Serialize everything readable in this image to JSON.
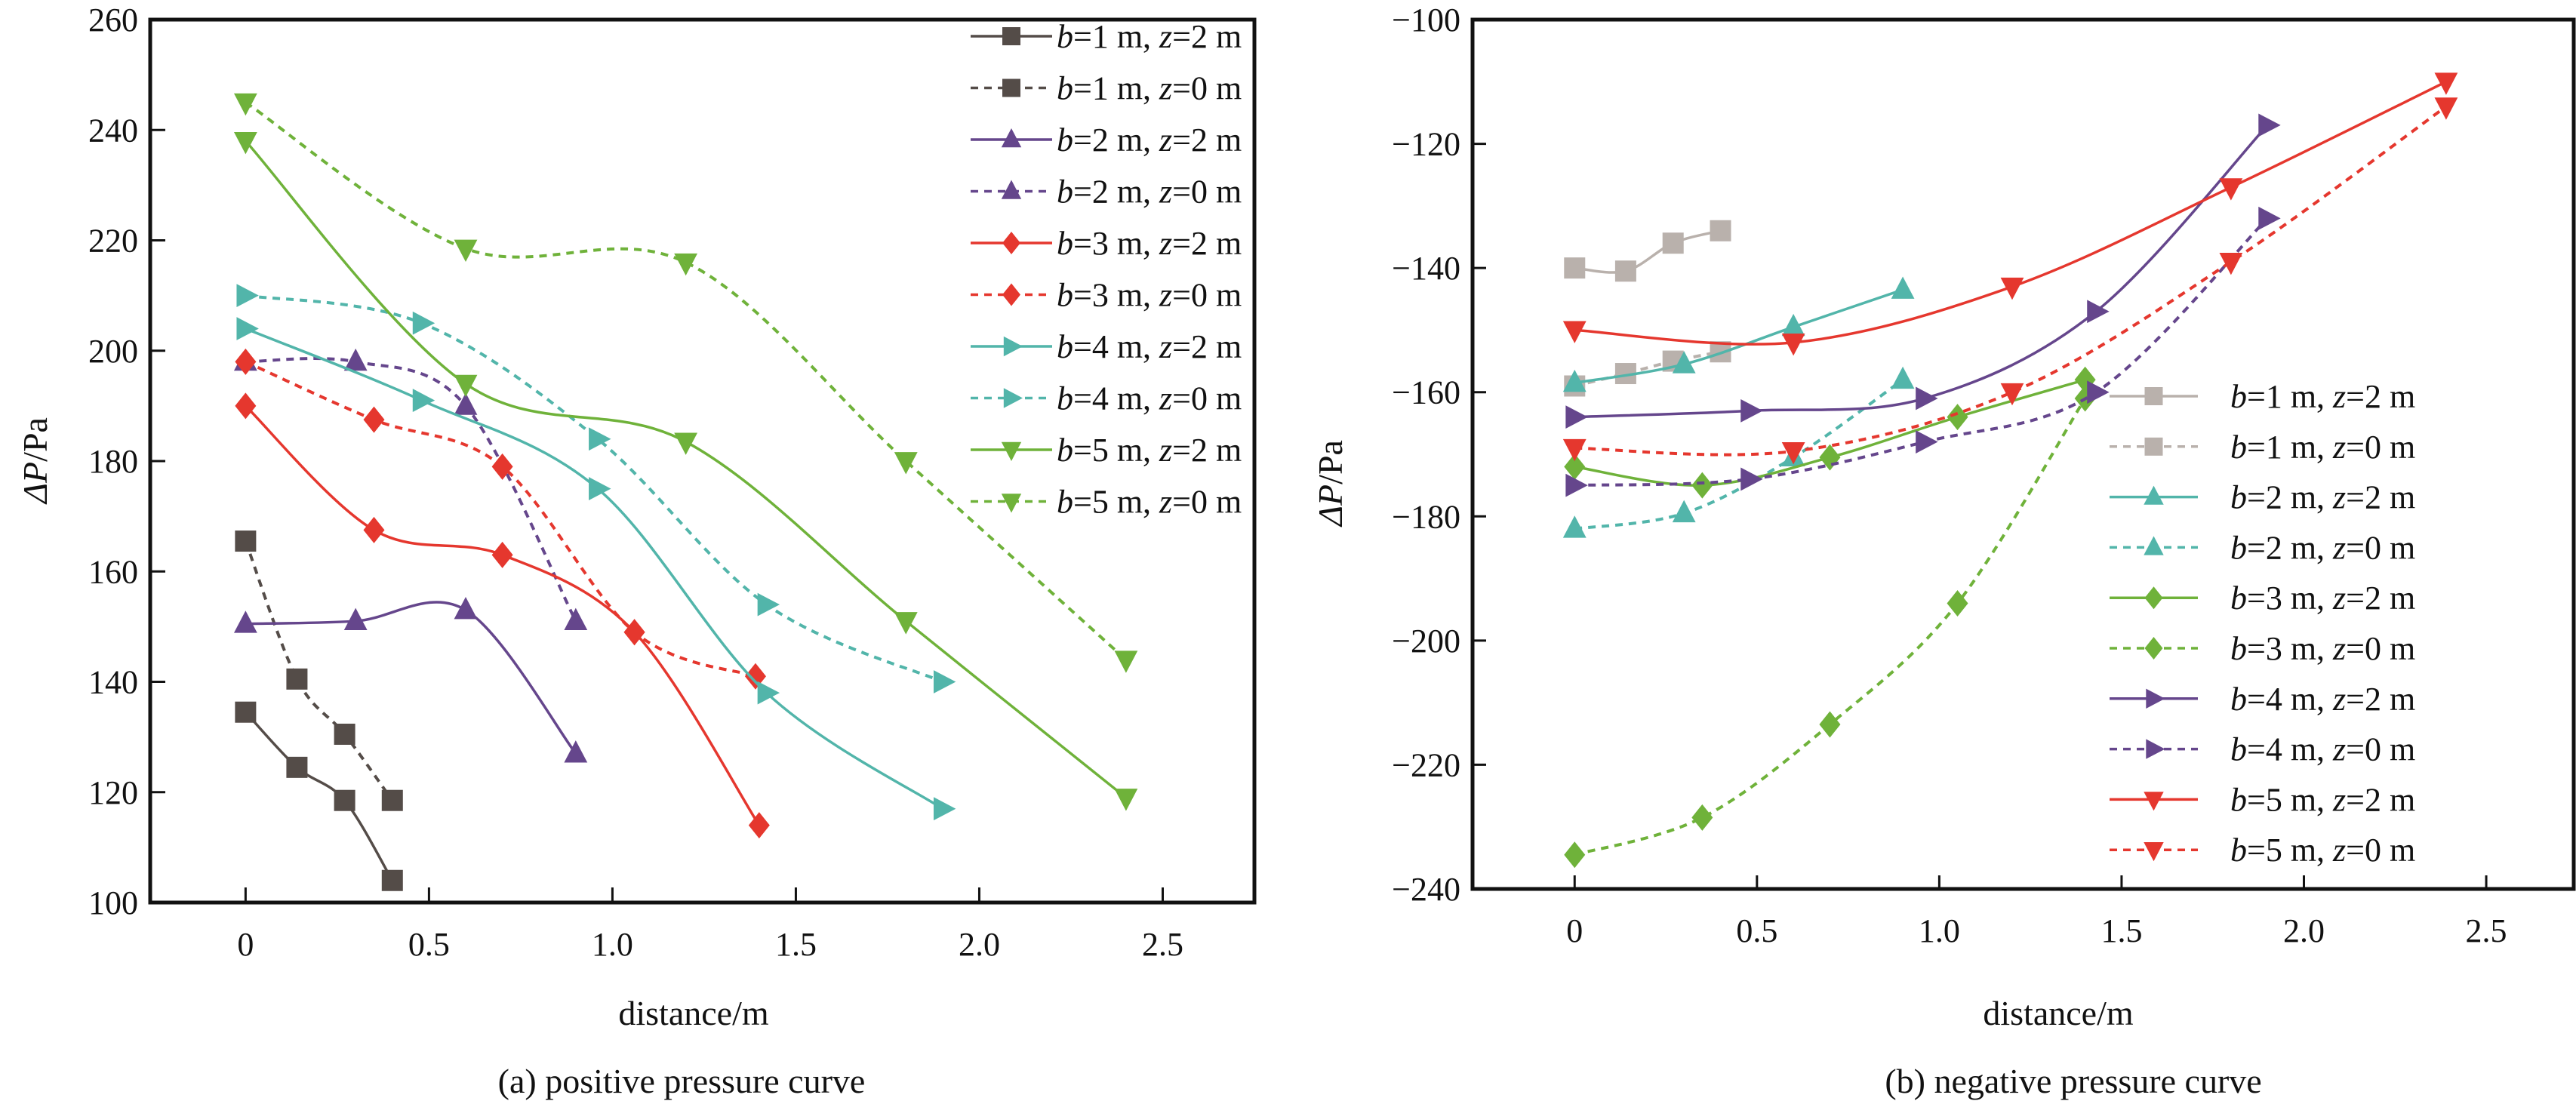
{
  "figure": {
    "panels": [
      "(a) positive pressure curve",
      "(b) negative pressure curve"
    ]
  },
  "chart_data": [
    {
      "id": "positive",
      "type": "line",
      "title": "(a) positive pressure curve",
      "xlabel": "distance/m",
      "ylabel_symbol": "ΔP",
      "ylabel_unit": "/Pa",
      "xlim": [
        -0.26,
        2.75
      ],
      "ylim": [
        100,
        260
      ],
      "xticks": [
        0,
        0.5,
        1.0,
        1.5,
        2.0,
        2.5
      ],
      "xtick_labels": [
        "0",
        "0.5",
        "1.0",
        "1.5",
        "2.0",
        "2.5"
      ],
      "yticks": [
        100,
        120,
        140,
        160,
        180,
        200,
        220,
        240,
        260
      ],
      "ytick_labels": [
        "100",
        "120",
        "140",
        "160",
        "180",
        "200",
        "220",
        "240",
        "260"
      ],
      "grid": false,
      "legend_placement": "top-right",
      "legend_boxed": true,
      "series": [
        {
          "name": "b=1 m, z=2 m",
          "b": "1",
          "z": "2",
          "color": "#544c48",
          "dash": "solid",
          "marker": "square",
          "x": [
            0,
            0.14,
            0.27,
            0.4
          ],
          "y": [
            134.5,
            124.5,
            118.5,
            104
          ]
        },
        {
          "name": "b=1 m, z=0 m",
          "b": "1",
          "z": "0",
          "color": "#544c48",
          "dash": "dashed",
          "marker": "square",
          "x": [
            0,
            0.14,
            0.27,
            0.4
          ],
          "y": [
            165.5,
            140.5,
            130.5,
            118.5
          ]
        },
        {
          "name": "b=2 m, z=2 m",
          "b": "2",
          "z": "2",
          "color": "#65468c",
          "dash": "solid",
          "marker": "triangle-up",
          "x": [
            0,
            0.3,
            0.6,
            0.9
          ],
          "y": [
            150.5,
            151,
            153,
            127
          ]
        },
        {
          "name": "b=2 m, z=0 m",
          "b": "2",
          "z": "0",
          "color": "#65468c",
          "dash": "dashed",
          "marker": "triangle-up",
          "x": [
            0,
            0.3,
            0.6,
            0.9
          ],
          "y": [
            198,
            198,
            190,
            151
          ]
        },
        {
          "name": "b=3 m, z=2 m",
          "b": "3",
          "z": "2",
          "color": "#e5372e",
          "dash": "solid",
          "marker": "diamond",
          "x": [
            0,
            0.35,
            0.7,
            1.06,
            1.4
          ],
          "y": [
            190,
            167.5,
            163,
            149,
            114
          ]
        },
        {
          "name": "b=3 m, z=0 m",
          "b": "3",
          "z": "0",
          "color": "#e5372e",
          "dash": "dashed",
          "marker": "diamond",
          "x": [
            0,
            0.35,
            0.7,
            1.06,
            1.39
          ],
          "y": [
            198,
            187.5,
            179,
            149,
            141
          ]
        },
        {
          "name": "b=4 m, z=2 m",
          "b": "4",
          "z": "2",
          "color": "#52b5aa",
          "dash": "solid",
          "marker": "triangle-right",
          "x": [
            0,
            0.48,
            0.96,
            1.42,
            1.9
          ],
          "y": [
            204,
            191,
            175,
            138,
            117
          ]
        },
        {
          "name": "b=4 m, z=0 m",
          "b": "4",
          "z": "0",
          "color": "#52b5aa",
          "dash": "dashed",
          "marker": "triangle-right",
          "x": [
            0,
            0.48,
            0.96,
            1.42,
            1.9
          ],
          "y": [
            210,
            205,
            184,
            154,
            140
          ]
        },
        {
          "name": "b=5 m, z=2 m",
          "b": "5",
          "z": "2",
          "color": "#6fb23a",
          "dash": "solid",
          "marker": "triangle-down",
          "x": [
            0,
            0.6,
            1.2,
            1.8,
            2.4
          ],
          "y": [
            238,
            194,
            183.5,
            151,
            119
          ]
        },
        {
          "name": "b=5 m, z=0 m",
          "b": "5",
          "z": "0",
          "color": "#6fb23a",
          "dash": "dashed",
          "marker": "triangle-down",
          "x": [
            0,
            0.6,
            1.2,
            1.8,
            2.4
          ],
          "y": [
            245,
            218.5,
            216,
            180,
            144
          ]
        }
      ]
    },
    {
      "id": "negative",
      "type": "line",
      "title": "(b) negative pressure curve",
      "xlabel": "distance/m",
      "ylabel_symbol": "ΔP",
      "ylabel_unit": "/Pa",
      "xlim": [
        -0.28,
        2.74
      ],
      "ylim": [
        -240,
        -100
      ],
      "xticks": [
        0,
        0.5,
        1.0,
        1.5,
        2.0,
        2.5
      ],
      "xtick_labels": [
        "0",
        "0.5",
        "1.0",
        "1.5",
        "2.0",
        "2.5"
      ],
      "yticks": [
        -240,
        -220,
        -200,
        -180,
        -160,
        -140,
        -120,
        -100
      ],
      "ytick_labels": [
        "−240",
        "−220",
        "−200",
        "−180",
        "−160",
        "−140",
        "−120",
        "−100"
      ],
      "grid": false,
      "legend_placement": "lower-right",
      "legend_boxed": false,
      "series": [
        {
          "name": "b=1 m, z=2 m",
          "b": "1",
          "z": "2",
          "color": "#b9b1ac",
          "dash": "solid",
          "marker": "square",
          "x": [
            0,
            0.14,
            0.27,
            0.4
          ],
          "y": [
            -140,
            -140.5,
            -136,
            -134
          ]
        },
        {
          "name": "b=1 m, z=0 m",
          "b": "1",
          "z": "0",
          "color": "#b9b1ac",
          "dash": "dashed",
          "marker": "square",
          "x": [
            0,
            0.14,
            0.27,
            0.4
          ],
          "y": [
            -159,
            -157,
            -155,
            -153.5
          ]
        },
        {
          "name": "b=2 m, z=2 m",
          "b": "2",
          "z": "2",
          "color": "#52b5aa",
          "dash": "solid",
          "marker": "triangle-up",
          "x": [
            0,
            0.3,
            0.6,
            0.9
          ],
          "y": [
            -158.5,
            -155.5,
            -149.5,
            -143.5
          ]
        },
        {
          "name": "b=2 m, z=0 m",
          "b": "2",
          "z": "0",
          "color": "#52b5aa",
          "dash": "dashed",
          "marker": "triangle-up",
          "x": [
            0,
            0.3,
            0.6,
            0.9
          ],
          "y": [
            -182,
            -179.5,
            -170.5,
            -158
          ]
        },
        {
          "name": "b=3 m, z=2 m",
          "b": "3",
          "z": "2",
          "color": "#6fb23a",
          "dash": "solid",
          "marker": "diamond",
          "x": [
            0,
            0.35,
            0.7,
            1.05,
            1.4
          ],
          "y": [
            -172,
            -175,
            -170.5,
            -164,
            -158
          ]
        },
        {
          "name": "b=3 m, z=0 m",
          "b": "3",
          "z": "0",
          "color": "#6fb23a",
          "dash": "dashed",
          "marker": "diamond",
          "x": [
            0,
            0.35,
            0.7,
            1.05,
            1.4
          ],
          "y": [
            -234.5,
            -228.5,
            -213.5,
            -194,
            -161
          ]
        },
        {
          "name": "b=4 m, z=2 m",
          "b": "4",
          "z": "2",
          "color": "#65468c",
          "dash": "solid",
          "marker": "triangle-right",
          "x": [
            0,
            0.48,
            0.96,
            1.43,
            1.9
          ],
          "y": [
            -164,
            -163,
            -161,
            -147,
            -117
          ]
        },
        {
          "name": "b=4 m, z=0 m",
          "b": "4",
          "z": "0",
          "color": "#65468c",
          "dash": "dashed",
          "marker": "triangle-right",
          "x": [
            0,
            0.48,
            0.96,
            1.43,
            1.9
          ],
          "y": [
            -175,
            -174,
            -168,
            -160,
            -132
          ]
        },
        {
          "name": "b=5 m, z=2 m",
          "b": "5",
          "z": "2",
          "color": "#e5372e",
          "dash": "solid",
          "marker": "triangle-down",
          "x": [
            0,
            0.6,
            1.2,
            1.8,
            2.39
          ],
          "y": [
            -150,
            -152,
            -143,
            -127,
            -110
          ]
        },
        {
          "name": "b=5 m, z=0 m",
          "b": "5",
          "z": "0",
          "color": "#e5372e",
          "dash": "dashed",
          "marker": "triangle-down",
          "x": [
            0,
            0.6,
            1.2,
            1.8,
            2.39
          ],
          "y": [
            -169,
            -169.5,
            -160,
            -139,
            -114
          ]
        }
      ]
    }
  ]
}
